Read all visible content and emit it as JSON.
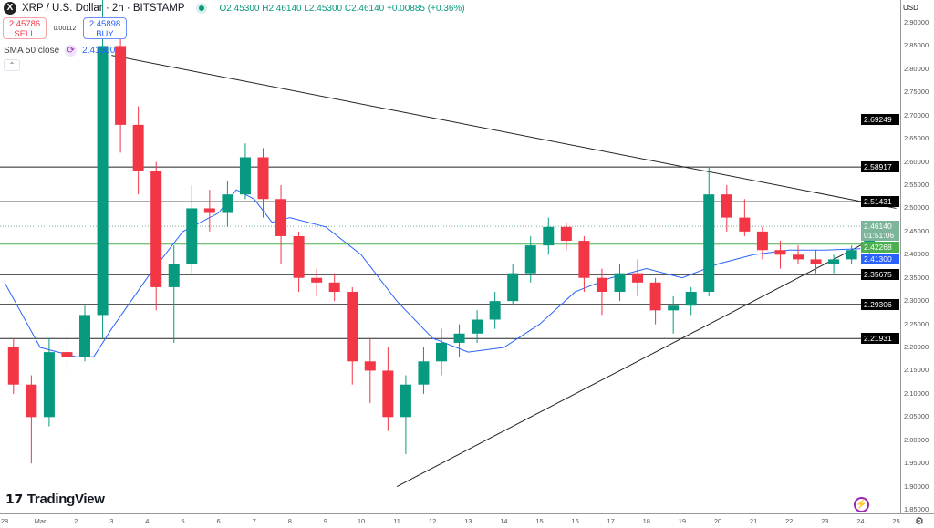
{
  "header": {
    "logo": "X",
    "title": "XRP / U.S. Dollar · 2h · BITSTAMP",
    "ohlc": "O2.45300 H2.46140 L2.45300 C2.46140 +0.00885 (+0.36%)"
  },
  "trade": {
    "sell_price": "2.45786",
    "sell_label": "SELL",
    "spread": "0.00112",
    "buy_price": "2.45898",
    "buy_label": "BUY"
  },
  "indicator": {
    "label": "SMA 50 close",
    "value": "2.41300",
    "icon": "refresh-icon"
  },
  "axis": {
    "currency": "USD",
    "settings_icon": "gear-icon"
  },
  "branding": {
    "logo_text": "TradingView",
    "logo_mark": "17"
  },
  "colors": {
    "up": "#089981",
    "down": "#f23645",
    "sma": "#2962ff",
    "level": "#000000",
    "current": "#7db59a",
    "support_green": "#4caf50"
  },
  "chart_data": {
    "type": "candlestick",
    "title": "XRP / U.S. Dollar · 2h · BITSTAMP",
    "ylim": [
      1.85,
      2.92
    ],
    "y_ticks": [
      "1.85000",
      "1.90000",
      "1.95000",
      "2.00000",
      "2.05000",
      "2.10000",
      "2.15000",
      "2.20000",
      "2.25000",
      "2.30000",
      "2.35000",
      "2.40000",
      "2.45000",
      "2.50000",
      "2.55000",
      "2.60000",
      "2.65000",
      "2.70000",
      "2.75000",
      "2.80000",
      "2.85000",
      "2.90000"
    ],
    "x_ticks": [
      "28",
      "Mar",
      "2",
      "3",
      "4",
      "5",
      "6",
      "7",
      "8",
      "9",
      "10",
      "11",
      "12",
      "13",
      "14",
      "15",
      "16",
      "17",
      "18",
      "19",
      "20",
      "21",
      "22",
      "23",
      "24",
      "25"
    ],
    "grid": false,
    "candles": [
      [
        "Feb 28 00:00",
        2.2,
        2.22,
        2.1,
        2.12
      ],
      [
        "Feb 28 12:00",
        2.12,
        2.14,
        1.95,
        2.05
      ],
      [
        "Mar 1 00:00",
        2.05,
        2.22,
        2.03,
        2.19
      ],
      [
        "Mar 1 12:00",
        2.19,
        2.23,
        2.15,
        2.18
      ],
      [
        "Mar 2 00:00",
        2.18,
        2.29,
        2.17,
        2.27
      ],
      [
        "Mar 2 12:00",
        2.27,
        2.95,
        2.22,
        2.85
      ],
      [
        "Mar 3 00:00",
        2.85,
        2.88,
        2.62,
        2.68
      ],
      [
        "Mar 3 12:00",
        2.68,
        2.72,
        2.53,
        2.58
      ],
      [
        "Mar 4 00:00",
        2.58,
        2.6,
        2.28,
        2.33
      ],
      [
        "Mar 4 12:00",
        2.33,
        2.42,
        2.21,
        2.38
      ],
      [
        "Mar 5 00:00",
        2.38,
        2.55,
        2.36,
        2.5
      ],
      [
        "Mar 5 12:00",
        2.5,
        2.54,
        2.45,
        2.49
      ],
      [
        "Mar 6 00:00",
        2.49,
        2.56,
        2.46,
        2.53
      ],
      [
        "Mar 6 12:00",
        2.53,
        2.64,
        2.52,
        2.61
      ],
      [
        "Mar 7 00:00",
        2.61,
        2.63,
        2.48,
        2.52
      ],
      [
        "Mar 7 12:00",
        2.52,
        2.55,
        2.38,
        2.44
      ],
      [
        "Mar 8 00:00",
        2.44,
        2.45,
        2.32,
        2.35
      ],
      [
        "Mar 8 12:00",
        2.35,
        2.37,
        2.31,
        2.34
      ],
      [
        "Mar 9 00:00",
        2.34,
        2.36,
        2.3,
        2.32
      ],
      [
        "Mar 9 12:00",
        2.32,
        2.33,
        2.12,
        2.17
      ],
      [
        "Mar 10 00:00",
        2.17,
        2.22,
        2.08,
        2.15
      ],
      [
        "Mar 10 12:00",
        2.15,
        2.2,
        2.02,
        2.05
      ],
      [
        "Mar 11 00:00",
        2.05,
        2.14,
        1.97,
        2.12
      ],
      [
        "Mar 11 12:00",
        2.12,
        2.2,
        2.1,
        2.17
      ],
      [
        "Mar 12 00:00",
        2.17,
        2.24,
        2.14,
        2.21
      ],
      [
        "Mar 12 12:00",
        2.21,
        2.25,
        2.18,
        2.23
      ],
      [
        "Mar 13 00:00",
        2.23,
        2.28,
        2.21,
        2.26
      ],
      [
        "Mar 13 12:00",
        2.26,
        2.32,
        2.24,
        2.3
      ],
      [
        "Mar 14 00:00",
        2.3,
        2.38,
        2.29,
        2.36
      ],
      [
        "Mar 14 12:00",
        2.36,
        2.44,
        2.34,
        2.42
      ],
      [
        "Mar 15 00:00",
        2.42,
        2.48,
        2.4,
        2.46
      ],
      [
        "Mar 15 12:00",
        2.46,
        2.47,
        2.41,
        2.43
      ],
      [
        "Mar 16 00:00",
        2.43,
        2.44,
        2.32,
        2.35
      ],
      [
        "Mar 16 12:00",
        2.35,
        2.37,
        2.27,
        2.32
      ],
      [
        "Mar 17 00:00",
        2.32,
        2.38,
        2.3,
        2.36
      ],
      [
        "Mar 17 12:00",
        2.36,
        2.39,
        2.31,
        2.34
      ],
      [
        "Mar 18 00:00",
        2.34,
        2.35,
        2.25,
        2.28
      ],
      [
        "Mar 18 12:00",
        2.28,
        2.31,
        2.23,
        2.29
      ],
      [
        "Mar 19 00:00",
        2.29,
        2.33,
        2.27,
        2.32
      ],
      [
        "Mar 19 12:00",
        2.32,
        2.59,
        2.31,
        2.53
      ],
      [
        "Mar 20 00:00",
        2.53,
        2.55,
        2.45,
        2.48
      ],
      [
        "Mar 20 12:00",
        2.48,
        2.52,
        2.44,
        2.45
      ],
      [
        "Mar 21 00:00",
        2.45,
        2.46,
        2.39,
        2.41
      ],
      [
        "Mar 21 12:00",
        2.41,
        2.43,
        2.37,
        2.4
      ],
      [
        "Mar 22 00:00",
        2.4,
        2.42,
        2.38,
        2.39
      ],
      [
        "Mar 22 12:00",
        2.39,
        2.41,
        2.36,
        2.38
      ],
      [
        "Mar 23 00:00",
        2.38,
        2.4,
        2.36,
        2.39
      ],
      [
        "Mar 23 12:00",
        2.39,
        2.42,
        2.38,
        2.41
      ],
      [
        "Mar 24 00:00",
        2.41,
        2.46,
        2.4,
        2.4614
      ]
    ],
    "sma50": [
      [
        "Feb 28 00:00",
        2.34
      ],
      [
        "Mar 1 00:00",
        2.2
      ],
      [
        "Mar 2 00:00",
        2.18
      ],
      [
        "Mar 2 12:00",
        2.18
      ],
      [
        "Mar 3 00:00",
        2.24
      ],
      [
        "Mar 4 00:00",
        2.35
      ],
      [
        "Mar 5 00:00",
        2.45
      ],
      [
        "Mar 6 00:00",
        2.49
      ],
      [
        "Mar 6 12:00",
        2.54
      ],
      [
        "Mar 7 00:00",
        2.52
      ],
      [
        "Mar 7 12:00",
        2.47
      ],
      [
        "Mar 8 00:00",
        2.48
      ],
      [
        "Mar 9 00:00",
        2.46
      ],
      [
        "Mar 10 00:00",
        2.4
      ],
      [
        "Mar 11 00:00",
        2.3
      ],
      [
        "Mar 12 00:00",
        2.22
      ],
      [
        "Mar 13 00:00",
        2.19
      ],
      [
        "Mar 14 00:00",
        2.2
      ],
      [
        "Mar 15 00:00",
        2.25
      ],
      [
        "Mar 16 00:00",
        2.32
      ],
      [
        "Mar 17 00:00",
        2.35
      ],
      [
        "Mar 18 00:00",
        2.37
      ],
      [
        "Mar 19 00:00",
        2.35
      ],
      [
        "Mar 20 00:00",
        2.38
      ],
      [
        "Mar 21 00:00",
        2.4
      ],
      [
        "Mar 22 00:00",
        2.41
      ],
      [
        "Mar 23 00:00",
        2.41
      ],
      [
        "Mar 24 00:00",
        2.413
      ]
    ],
    "levels": [
      {
        "price": "2.69249",
        "kind": "line"
      },
      {
        "price": "2.58917",
        "kind": "line"
      },
      {
        "price": "2.51431",
        "kind": "line"
      },
      {
        "price": "2.46140",
        "kind": "current",
        "countdown": "01:51:06"
      },
      {
        "price": "2.42268",
        "kind": "green"
      },
      {
        "price": "2.41300",
        "kind": "sma"
      },
      {
        "price": "2.35675",
        "kind": "line"
      },
      {
        "price": "2.29306",
        "kind": "line"
      },
      {
        "price": "2.21931",
        "kind": "line"
      }
    ],
    "trendlines": [
      {
        "from": [
          "Mar 3 00:00",
          2.83
        ],
        "to": [
          "Mar 25 00:00",
          2.5
        ]
      },
      {
        "from": [
          "Mar 11 00:00",
          1.9
        ],
        "to": [
          "Mar 25 00:00",
          2.46
        ]
      }
    ]
  }
}
